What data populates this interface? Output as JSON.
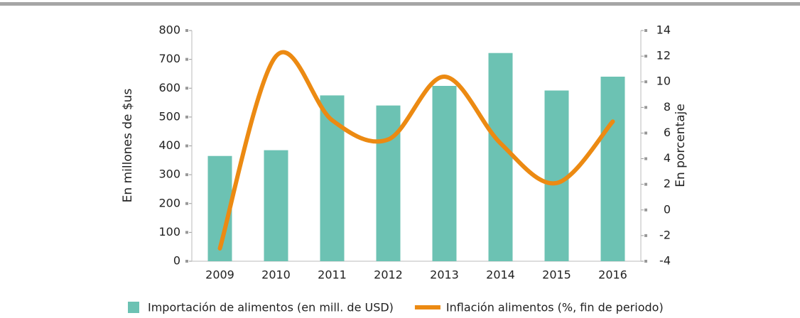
{
  "chart_data": {
    "type": "bar_line",
    "categories": [
      "2009",
      "2010",
      "2011",
      "2012",
      "2013",
      "2014",
      "2015",
      "2016"
    ],
    "series": [
      {
        "name": "Importación de alimentos (en mill. de USD)",
        "color": "#6cc2b3",
        "type": "bar",
        "values": [
          365,
          385,
          575,
          540,
          608,
          722,
          592,
          640
        ]
      },
      {
        "name": "Inflación alimentos (%, fin de periodo)",
        "color": "#ec8a12",
        "type": "line",
        "axis": "y2",
        "values": [
          -3,
          12,
          7,
          5.5,
          10.4,
          5.2,
          2.1,
          6.9
        ]
      }
    ],
    "ylabel": "En millones de $us",
    "y2label": "En porcentaje",
    "ylim": [
      0,
      800
    ],
    "yticks": [
      0,
      100,
      200,
      300,
      400,
      500,
      600,
      700,
      800
    ],
    "y2lim": [
      -4,
      14
    ],
    "y2ticks": [
      -4,
      -2,
      0,
      2,
      4,
      6,
      8,
      10,
      12,
      14
    ],
    "legend": "bottom"
  }
}
